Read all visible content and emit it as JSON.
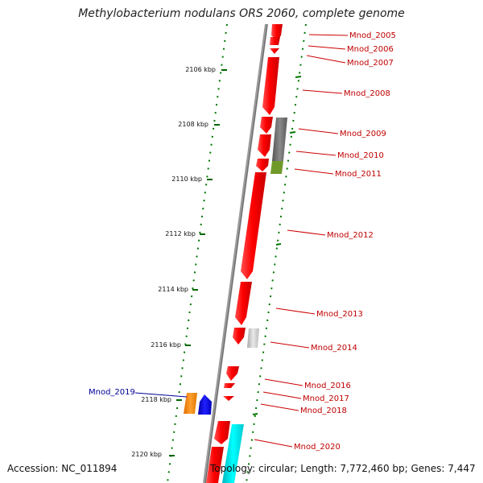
{
  "title": "Methylobacterium nodulans ORS 2060, complete genome",
  "footer": {
    "accession": "Accession: NC_011894",
    "topology": "Topology: circular; Length: 7,772,460 bp; Genes: 7,447"
  },
  "ruler_ticks": [
    "2106 kbp",
    "2108 kbp",
    "2110 kbp",
    "2112 kbp",
    "2114 kbp",
    "2116 kbp",
    "2118 kbp",
    "2120 kbp"
  ],
  "gene_labels": [
    "Mnod_2005",
    "Mnod_2006",
    "Mnod_2007",
    "Mnod_2008",
    "Mnod_2009",
    "Mnod_2010",
    "Mnod_2011",
    "Mnod_2012",
    "Mnod_2013",
    "Mnod_2014",
    "Mnod_2016",
    "Mnod_2017",
    "Mnod_2018",
    "Mnod_2019",
    "Mnod_2020"
  ],
  "colors": {
    "cds_forward": "#ff0000",
    "backbone": "#808080",
    "gc_dots": "#007700",
    "label_red": "#c00000",
    "label_blue": "#000099",
    "feature_gray": "#707070",
    "feature_olive": "#6f9a2a",
    "feature_lightgray": "#c8c8c8",
    "feature_orange": "#ff8c00",
    "feature_blue": "#0000ee",
    "feature_cyan": "#00e5ee"
  }
}
